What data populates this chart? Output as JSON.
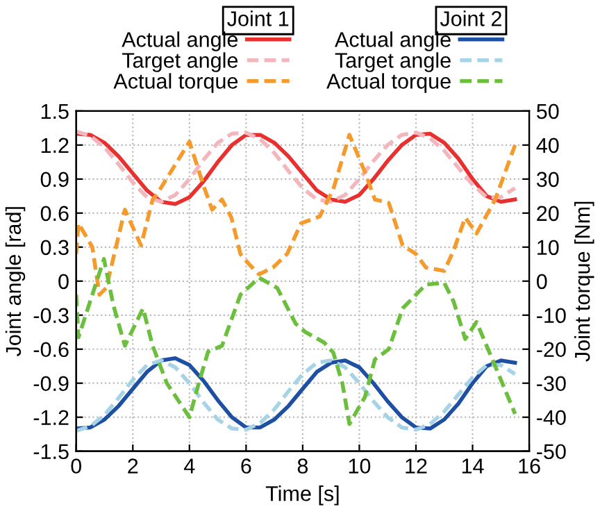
{
  "chart_data": {
    "type": "line",
    "xlabel": "Time [s]",
    "ylabel": "Joint angle [rad]",
    "y2label": "Joint torque [Nm]",
    "legend_title": [
      "Joint 1",
      "Joint 2"
    ],
    "legend": "top",
    "grid": true,
    "line_style": "solid",
    "xlim": [
      0,
      16
    ],
    "xticks": [
      0,
      2,
      4,
      6,
      8,
      10,
      12,
      14,
      16
    ],
    "ylim": [
      -1.5,
      1.5
    ],
    "yticks": [
      -1.5,
      -1.2,
      -0.9,
      -0.6,
      -0.3,
      0,
      0.3,
      0.6,
      0.9,
      1.2,
      1.5
    ],
    "y2lim": [
      -50,
      50
    ],
    "y2ticks": [
      -50,
      -40,
      -30,
      -20,
      -10,
      0,
      10,
      20,
      30,
      40,
      50
    ],
    "x": [
      0,
      0.5,
      1,
      1.5,
      2,
      2.5,
      3,
      3.5,
      4,
      4.5,
      5,
      5.5,
      6,
      6.5,
      7,
      7.5,
      8,
      8.5,
      9,
      9.5,
      10,
      10.5,
      11,
      11.5,
      12,
      12.5,
      13,
      13.5,
      14,
      14.5,
      15,
      15.5
    ],
    "series": [
      {
        "name": "Actual angle",
        "color": "#e8302f",
        "values": [
          1.3,
          1.29,
          1.22,
          1.1,
          0.95,
          0.8,
          0.7,
          0.68,
          0.74,
          0.88,
          1.05,
          1.2,
          1.29,
          1.29,
          1.22,
          1.1,
          0.95,
          0.8,
          0.72,
          0.7,
          0.76,
          0.9,
          1.06,
          1.2,
          1.29,
          1.3,
          1.22,
          1.08,
          0.9,
          0.75,
          0.7,
          0.72
        ]
      },
      {
        "name": "Target angle",
        "color": "#f4b6bd",
        "line_style": "dashed",
        "values": [
          1.32,
          1.28,
          1.18,
          1.03,
          0.87,
          0.74,
          0.7,
          0.76,
          0.9,
          1.07,
          1.22,
          1.3,
          1.31,
          1.25,
          1.13,
          0.97,
          0.82,
          0.72,
          0.7,
          0.76,
          0.9,
          1.06,
          1.2,
          1.29,
          1.31,
          1.26,
          1.15,
          1.0,
          0.85,
          0.74,
          0.74,
          0.82
        ]
      },
      {
        "name": "Actual torque",
        "color": "#f59a2c",
        "line_style": "dashed",
        "axis": "y2",
        "x": [
          0,
          0.08,
          0.57,
          0.82,
          1.06,
          1.72,
          2.29,
          2.7,
          2.85,
          4.0,
          4.5,
          4.8,
          5.15,
          5.48,
          5.8,
          6.1,
          6.46,
          6.95,
          7.45,
          7.94,
          8.6,
          9.08,
          9.65,
          10.2,
          10.55,
          11.04,
          11.53,
          12.0,
          12.35,
          13.0,
          13.33,
          13.74,
          14.14,
          14.8,
          15.5
        ],
        "values": [
          8,
          17,
          10,
          -4,
          -2,
          21,
          10.5,
          24,
          25.5,
          41,
          28,
          21,
          24,
          18.7,
          8,
          5,
          2,
          4,
          8,
          17,
          19,
          27,
          43,
          32,
          24,
          23,
          10.5,
          8,
          4,
          3,
          9,
          18.7,
          14,
          24,
          40
        ]
      },
      {
        "name": "Actual angle",
        "color": "#1f4fa3",
        "values": [
          -1.3,
          -1.29,
          -1.22,
          -1.1,
          -0.95,
          -0.8,
          -0.7,
          -0.68,
          -0.74,
          -0.88,
          -1.05,
          -1.2,
          -1.29,
          -1.29,
          -1.22,
          -1.1,
          -0.95,
          -0.8,
          -0.72,
          -0.7,
          -0.76,
          -0.9,
          -1.06,
          -1.2,
          -1.29,
          -1.3,
          -1.22,
          -1.08,
          -0.9,
          -0.75,
          -0.7,
          -0.72
        ]
      },
      {
        "name": "Target angle",
        "color": "#a6d3e6",
        "line_style": "dashed",
        "values": [
          -1.32,
          -1.28,
          -1.18,
          -1.03,
          -0.87,
          -0.74,
          -0.7,
          -0.76,
          -0.9,
          -1.07,
          -1.22,
          -1.3,
          -1.31,
          -1.25,
          -1.13,
          -0.97,
          -0.82,
          -0.72,
          -0.7,
          -0.76,
          -0.9,
          -1.06,
          -1.2,
          -1.29,
          -1.31,
          -1.26,
          -1.15,
          -1.0,
          -0.85,
          -0.74,
          -0.74,
          -0.82
        ]
      },
      {
        "name": "Actual torque",
        "color": "#6cbf3c",
        "line_style": "dashed",
        "axis": "y2",
        "x": [
          0,
          0.08,
          0.57,
          0.98,
          1.31,
          1.72,
          2.36,
          2.7,
          3.2,
          4.0,
          4.33,
          4.66,
          5.15,
          5.8,
          6.46,
          7.1,
          7.75,
          8.1,
          8.75,
          9.08,
          9.4,
          9.65,
          10.2,
          10.55,
          11.04,
          11.53,
          12.0,
          12.35,
          13.0,
          13.33,
          13.74,
          14.14,
          14.8,
          15.5
        ],
        "values": [
          -4,
          -16.5,
          -4,
          6.5,
          -7,
          -19,
          -8,
          -19,
          -30,
          -40,
          -30,
          -20.7,
          -19,
          -4,
          1,
          -2,
          -12.5,
          -15,
          -18,
          -21,
          -30,
          -42,
          -34,
          -23,
          -20,
          -8,
          -4,
          -1,
          -0.5,
          -6,
          -17,
          -12,
          -25,
          -39
        ]
      }
    ]
  }
}
